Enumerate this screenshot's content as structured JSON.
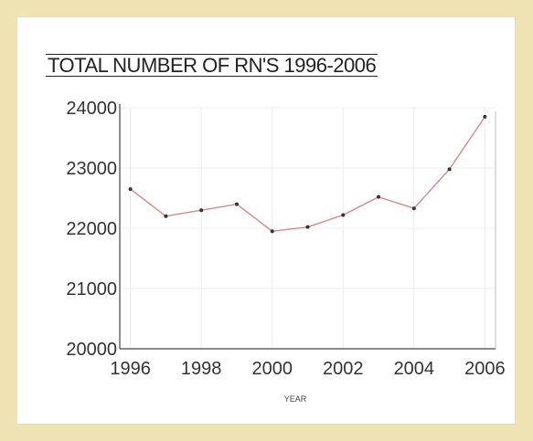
{
  "chart_data": {
    "type": "line",
    "title": "TOTAL NUMBER OF RN'S 1996-2006",
    "xlabel": "YEAR",
    "ylabel": "",
    "x": [
      1996,
      1997,
      1998,
      1999,
      2000,
      2001,
      2002,
      2003,
      2004,
      2005,
      2006
    ],
    "series": [
      {
        "values": [
          22650,
          22200,
          22300,
          22400,
          21950,
          22020,
          22220,
          22520,
          22330,
          22980,
          23850
        ],
        "color": "#d9868a"
      }
    ],
    "xticks": [
      "1996",
      "1998",
      "2000",
      "2002",
      "2004",
      "2006"
    ],
    "yticks": [
      "20000",
      "21000",
      "22000",
      "23000",
      "24000"
    ],
    "xlim": [
      1995.7,
      2006.3
    ],
    "ylim": [
      20000,
      24000
    ],
    "grid": true,
    "legend": "none"
  },
  "colors": {
    "background": "#efe3b4",
    "panel": "#ffffff",
    "axis": "#444444",
    "grid": "#ececec",
    "line": "#d9868a",
    "marker": "#333333"
  }
}
